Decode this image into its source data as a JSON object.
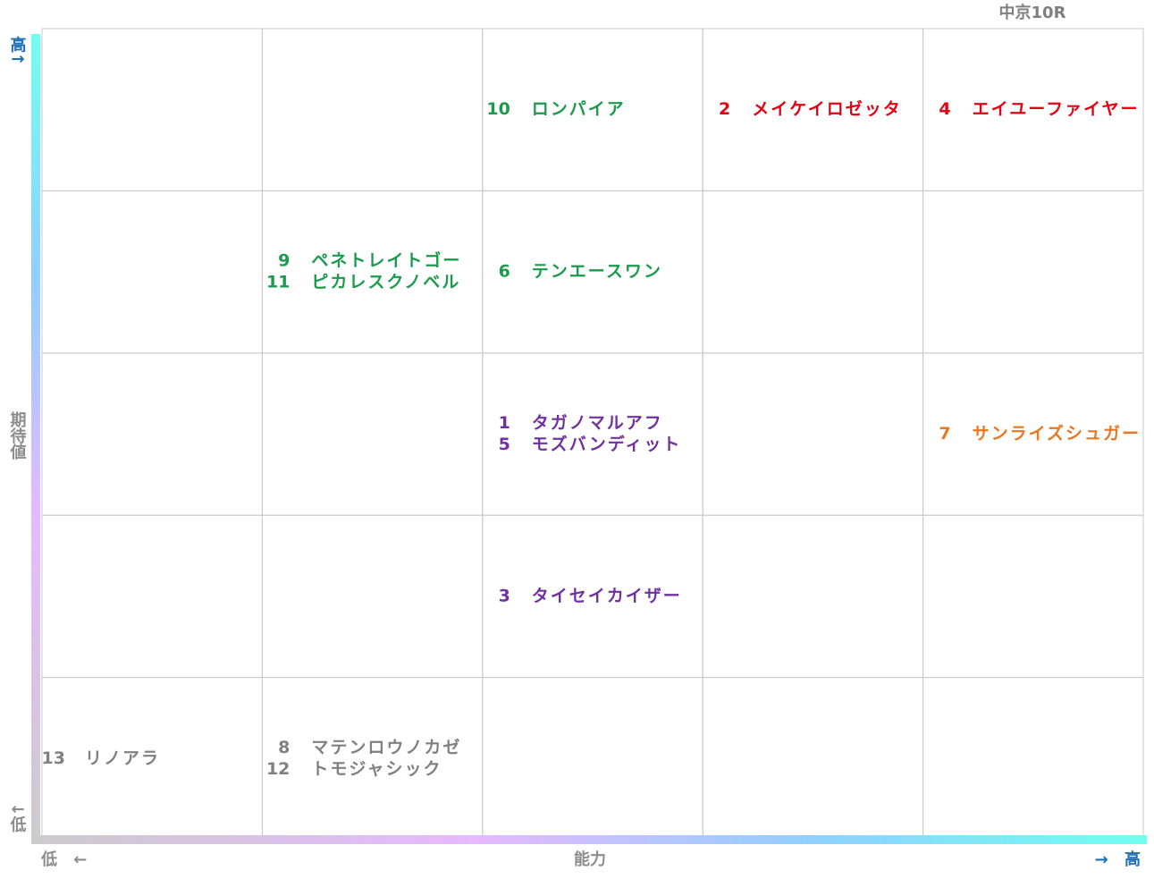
{
  "header": {
    "title": "中京10R"
  },
  "axes": {
    "y_high": "高↑",
    "y_label": "期待値",
    "y_low": "↓低",
    "x_low": "低 ←",
    "x_label": "能力",
    "x_high": "→ 高"
  },
  "grid": {
    "rows": [
      [
        [],
        [],
        [
          {
            "number": "10",
            "name": "ロンパイア",
            "color": "#1a9a4a"
          }
        ],
        [
          {
            "number": "2",
            "name": "メイケイロゼッタ",
            "color": "#e60012"
          }
        ],
        [
          {
            "number": "4",
            "name": "エイユーファイヤー",
            "color": "#e60012"
          }
        ]
      ],
      [
        [],
        [
          {
            "number": "9",
            "name": "ペネトレイトゴー",
            "color": "#1a9a4a"
          },
          {
            "number": "11",
            "name": "ピカレスクノベル",
            "color": "#1a9a4a"
          }
        ],
        [
          {
            "number": "6",
            "name": "テンエースワン",
            "color": "#1a9a4a"
          }
        ],
        [],
        []
      ],
      [
        [],
        [],
        [
          {
            "number": "1",
            "name": "タガノマルアフ",
            "color": "#7030a0"
          },
          {
            "number": "5",
            "name": "モズバンディット",
            "color": "#7030a0"
          }
        ],
        [],
        [
          {
            "number": "7",
            "name": "サンライズシュガー",
            "color": "#e87722"
          }
        ]
      ],
      [
        [],
        [],
        [
          {
            "number": "3",
            "name": "タイセイカイザー",
            "color": "#7030a0"
          }
        ],
        [],
        []
      ],
      [
        [
          {
            "number": "13",
            "name": "リノアラ",
            "color": "#808080"
          }
        ],
        [
          {
            "number": "8",
            "name": "マテンロウノカゼ",
            "color": "#808080"
          },
          {
            "number": "12",
            "name": "トモジャシック",
            "color": "#808080"
          }
        ],
        [],
        [],
        []
      ]
    ]
  }
}
